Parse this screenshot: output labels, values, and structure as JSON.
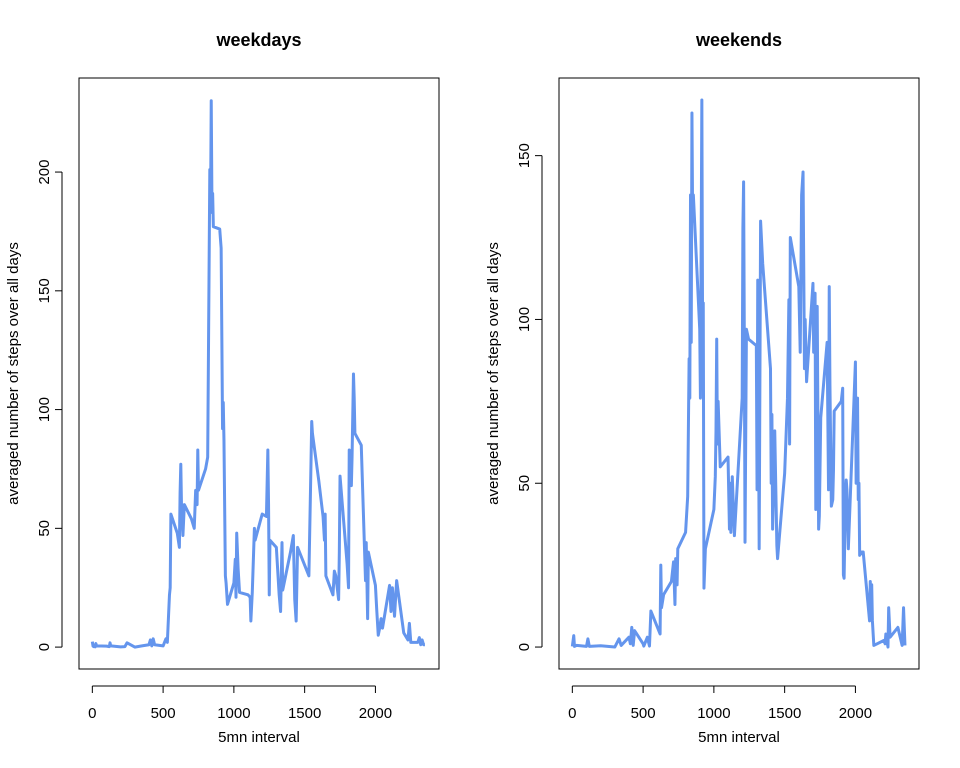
{
  "chart_data": [
    {
      "type": "line",
      "title": "weekdays",
      "xlabel": "5mn interval",
      "ylabel": "averaged number of steps over all days",
      "x": [
        0,
        5,
        10,
        15,
        20,
        25,
        30,
        100,
        120,
        125,
        130,
        200,
        230,
        245,
        300,
        350,
        400,
        410,
        420,
        430,
        440,
        500,
        520,
        530,
        545,
        550,
        555,
        600,
        615,
        620,
        625,
        630,
        640,
        650,
        700,
        720,
        730,
        740,
        745,
        750,
        800,
        815,
        830,
        835,
        840,
        845,
        850,
        855,
        900,
        910,
        920,
        925,
        930,
        940,
        945,
        955,
        1000,
        1010,
        1015,
        1020,
        1030,
        1040,
        1100,
        1115,
        1120,
        1130,
        1145,
        1150,
        1200,
        1230,
        1240,
        1245,
        1250,
        1255,
        1300,
        1320,
        1330,
        1340,
        1345,
        1400,
        1420,
        1430,
        1440,
        1450,
        1530,
        1545,
        1550,
        1555,
        1600,
        1630,
        1640,
        1645,
        1650,
        1700,
        1710,
        1720,
        1740,
        1745,
        1750,
        1800,
        1810,
        1815,
        1830,
        1835,
        1845,
        1850,
        1855,
        1900,
        1930,
        1935,
        1945,
        1950,
        2000,
        2010,
        2020,
        2030,
        2040,
        2050,
        2100,
        2110,
        2120,
        2135,
        2150,
        2200,
        2230,
        2240,
        2250,
        2300,
        2310,
        2320,
        2330,
        2340,
        2350
      ],
      "series": [
        {
          "color": "#6495ed",
          "values": [
            2.3,
            0.4,
            0.2,
            0.2,
            0.1,
            1.5,
            0.5,
            0.4,
            0.2,
            1.8,
            0.5,
            0.1,
            0.2,
            1.8,
            0,
            0.5,
            1,
            3,
            0.5,
            3.5,
            1,
            0.5,
            3.5,
            2,
            22,
            25,
            56,
            48,
            42,
            65,
            77,
            59,
            47,
            60,
            54,
            50,
            66,
            60,
            83,
            66,
            75,
            80,
            201,
            183,
            230,
            187,
            191,
            177,
            176,
            168,
            92,
            103,
            87,
            30,
            27,
            18,
            27,
            37,
            21,
            48,
            33,
            23,
            22,
            21,
            11,
            23,
            50,
            45,
            56,
            55,
            83,
            60,
            22,
            45,
            42,
            22,
            15,
            44,
            24,
            40,
            47,
            20,
            11,
            42,
            30,
            78,
            95,
            90,
            70,
            55,
            45,
            56,
            30,
            22,
            32,
            30,
            20,
            40,
            72,
            35,
            25,
            83,
            68,
            80,
            115,
            105,
            90,
            85,
            28,
            44,
            12,
            40,
            26,
            15,
            5,
            8,
            12,
            8,
            26,
            15,
            25,
            13,
            28,
            6,
            3,
            10,
            2,
            2,
            4,
            1,
            3,
            1,
            1
          ]
        }
      ],
      "xlim": [
        -94.2,
        2449.2
      ],
      "ylim": [
        -9.22,
        239.6
      ],
      "xticks": [
        0,
        500,
        1000,
        1500,
        2000
      ],
      "yticks": [
        0,
        50,
        100,
        150,
        200
      ]
    },
    {
      "type": "line",
      "title": "weekends",
      "xlabel": "5mn interval",
      "ylabel": "averaged number of steps over all days",
      "x": [
        0,
        10,
        15,
        30,
        100,
        110,
        120,
        200,
        300,
        330,
        345,
        400,
        410,
        420,
        430,
        440,
        500,
        505,
        530,
        545,
        555,
        620,
        625,
        630,
        645,
        700,
        715,
        725,
        730,
        740,
        745,
        800,
        815,
        825,
        830,
        835,
        840,
        845,
        850,
        855,
        900,
        905,
        915,
        920,
        925,
        930,
        940,
        1000,
        1010,
        1015,
        1020,
        1025,
        1030,
        1045,
        1100,
        1110,
        1115,
        1120,
        1130,
        1145,
        1200,
        1205,
        1210,
        1215,
        1220,
        1230,
        1245,
        1300,
        1305,
        1310,
        1315,
        1320,
        1330,
        1345,
        1400,
        1405,
        1410,
        1415,
        1430,
        1445,
        1450,
        1500,
        1520,
        1530,
        1535,
        1540,
        1600,
        1610,
        1620,
        1630,
        1640,
        1645,
        1655,
        1700,
        1705,
        1715,
        1720,
        1730,
        1740,
        1745,
        1755,
        1800,
        1810,
        1815,
        1820,
        1830,
        1840,
        1845,
        1850,
        1900,
        1910,
        1915,
        1920,
        1930,
        1935,
        1940,
        1950,
        2000,
        2005,
        2010,
        2015,
        2020,
        2025,
        2030,
        2045,
        2055,
        2100,
        2105,
        2110,
        2115,
        2120,
        2130,
        2200,
        2210,
        2215,
        2230,
        2235,
        2245,
        2300,
        2330,
        2340,
        2350
      ],
      "series": [
        {
          "color": "#6495ed",
          "values": [
            0.2,
            3.5,
            0.2,
            0.5,
            0.2,
            2.5,
            0.2,
            0.4,
            0,
            2.5,
            0.5,
            3,
            1,
            6,
            0.5,
            5,
            1,
            0.3,
            3,
            0.3,
            11,
            4,
            25,
            12,
            16,
            20,
            26,
            13,
            27,
            19,
            30,
            35,
            46,
            88,
            76,
            138,
            93,
            163,
            130,
            138,
            97,
            76,
            167,
            100,
            105,
            18,
            30,
            42,
            52,
            66,
            94,
            62,
            75,
            55,
            58,
            36,
            50,
            35,
            52,
            34,
            76,
            128,
            142,
            95,
            32,
            97,
            94,
            92,
            48,
            112,
            74,
            30,
            130,
            117,
            85,
            50,
            71,
            36,
            66,
            31,
            27,
            53,
            76,
            106,
            62,
            125,
            110,
            90,
            138,
            145,
            85,
            100,
            81,
            111,
            90,
            108,
            42,
            104,
            36,
            40,
            70,
            93,
            48,
            110,
            80,
            43,
            45,
            54,
            72,
            75,
            79,
            22,
            21,
            47,
            51,
            48,
            30,
            87,
            50,
            52,
            76,
            45,
            50,
            28,
            29,
            29,
            8,
            20,
            10,
            19,
            8,
            0.5,
            2,
            1,
            4,
            0,
            12,
            3,
            6,
            0.5,
            12,
            0.5
          ]
        }
      ],
      "xlim": [
        -94.2,
        2449.2
      ],
      "ylim": [
        -6.7,
        173.7
      ],
      "xticks": [
        0,
        500,
        1000,
        1500,
        2000
      ],
      "yticks": [
        0,
        50,
        100,
        150
      ]
    }
  ]
}
